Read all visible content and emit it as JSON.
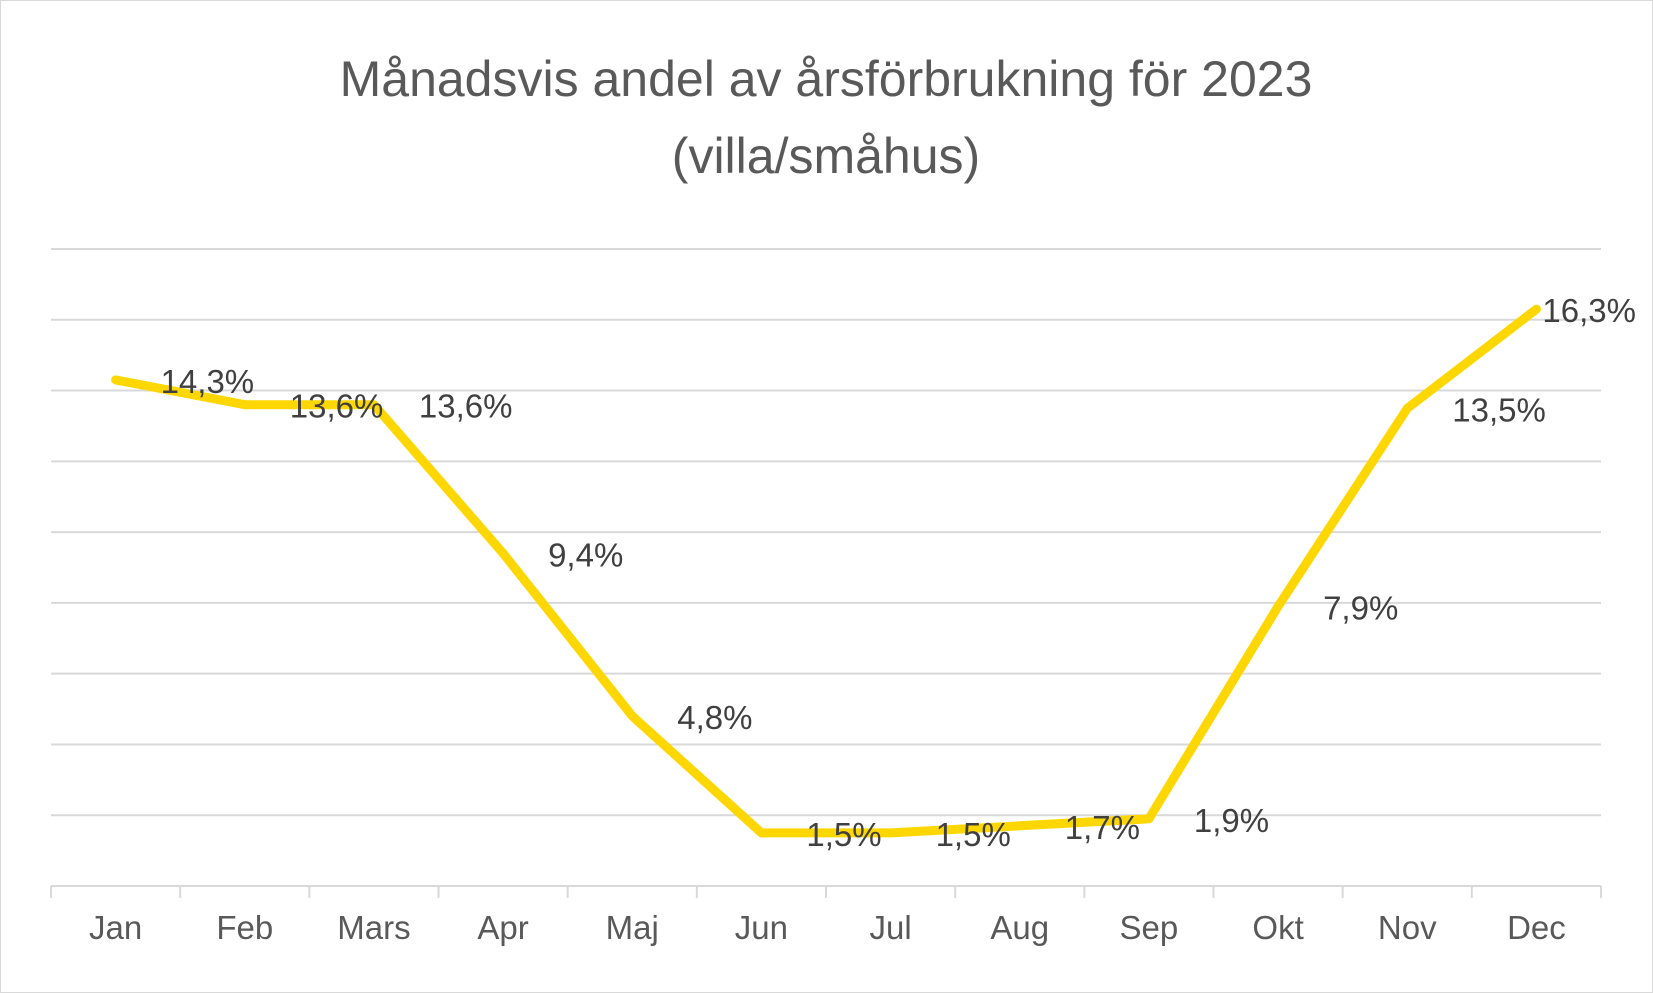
{
  "chart_data": {
    "type": "line",
    "title_lines": [
      "Månadsvis andel av årsförbrukning för 2023",
      "(villa/småhus)"
    ],
    "categories": [
      "Jan",
      "Feb",
      "Mars",
      "Apr",
      "Maj",
      "Jun",
      "Jul",
      "Aug",
      "Sep",
      "Okt",
      "Nov",
      "Dec"
    ],
    "values": [
      14.3,
      13.6,
      13.6,
      9.4,
      4.8,
      1.5,
      1.5,
      1.7,
      1.9,
      7.9,
      13.5,
      16.3
    ],
    "data_labels": [
      "14,3%",
      "13,6%",
      "13,6%",
      "9,4%",
      "4,8%",
      "1,5%",
      "1,5%",
      "1,7%",
      "1,9%",
      "7,9%",
      "13,5%",
      "16,3%"
    ],
    "ylim": [
      0,
      18
    ],
    "y_gridlines": [
      2,
      4,
      6,
      8,
      10,
      12,
      14,
      16,
      18
    ],
    "y_tick_labels_visible": false,
    "grid": true,
    "legend": "none",
    "line_color": "#FFD700",
    "xlabel": "",
    "ylabel": ""
  }
}
